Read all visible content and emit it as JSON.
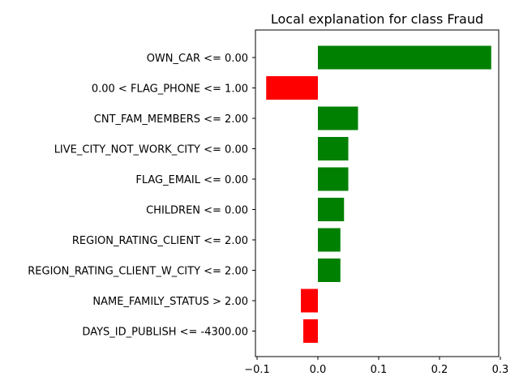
{
  "chart_data": {
    "type": "bar",
    "orientation": "horizontal",
    "title": "Local explanation for class Fraud",
    "xlabel": "",
    "ylabel": "",
    "xlim": [
      -0.1,
      0.3
    ],
    "xticks": [
      -0.1,
      0.0,
      0.1,
      0.2,
      0.3
    ],
    "xtick_labels": [
      "−0.1",
      "0.0",
      "0.1",
      "0.2",
      "0.3"
    ],
    "grid": false,
    "categories": [
      "OWN_CAR <= 0.00",
      "0.00 < FLAG_PHONE <= 1.00",
      "CNT_FAM_MEMBERS <= 2.00",
      "LIVE_CITY_NOT_WORK_CITY <= 0.00",
      "FLAG_EMAIL <= 0.00",
      "CHILDREN <= 0.00",
      "REGION_RATING_CLIENT <= 2.00",
      "REGION_RATING_CLIENT_W_CITY <= 2.00",
      "NAME_FAMILY_STATUS > 2.00",
      "DAYS_ID_PUBLISH <= -4300.00"
    ],
    "values": [
      0.285,
      -0.085,
      0.066,
      0.05,
      0.05,
      0.043,
      0.037,
      0.037,
      -0.028,
      -0.024
    ],
    "colors": {
      "positive": "#008000",
      "negative": "#ff0000"
    }
  }
}
